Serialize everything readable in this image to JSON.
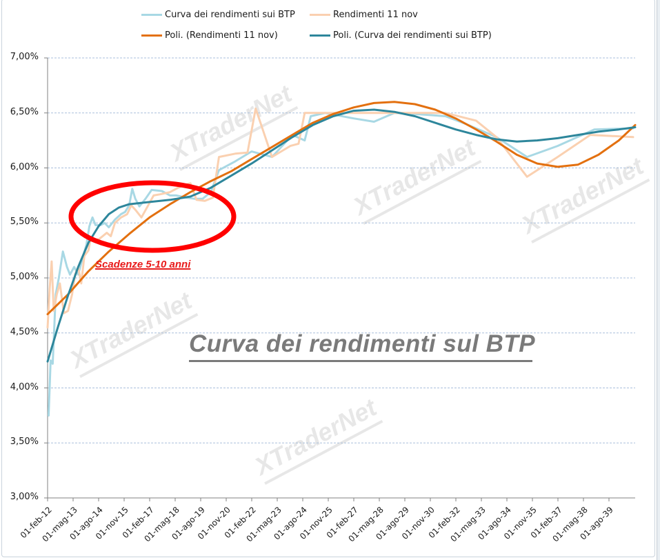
{
  "chart_data": {
    "type": "line",
    "title": "Curva dei rendimenti sul BTP",
    "xlabel": "",
    "ylabel": "",
    "ylim": [
      3.0,
      7.0
    ],
    "y_ticks": [
      "3,00%",
      "3,50%",
      "4,00%",
      "4,50%",
      "5,00%",
      "5,50%",
      "6,00%",
      "6,50%",
      "7,00%"
    ],
    "y_tick_values": [
      3.0,
      3.5,
      4.0,
      4.5,
      5.0,
      5.5,
      6.0,
      6.5,
      7.0
    ],
    "x_ticks": [
      "01-feb-12",
      "01-mag-13",
      "01-ago-14",
      "01-nov-15",
      "01-feb-17",
      "01-mag-18",
      "01-ago-19",
      "01-nov-20",
      "01-feb-22",
      "01-mag-23",
      "01-ago-24",
      "01-nov-25",
      "01-feb-27",
      "01-mag-28",
      "01-ago-29",
      "01-nov-30",
      "01-feb-32",
      "01-mag-33",
      "01-ago-34",
      "01-nov-35",
      "01-feb-37",
      "01-mag-38",
      "01-ago-39"
    ],
    "x_unit": "years since 01-feb-12",
    "x_range": [
      0,
      28.8
    ],
    "grid": "horizontal dashed",
    "legend_position": "top",
    "series": [
      {
        "name": "Curva dei rendimenti sui BTP",
        "color": "#a8d8e4",
        "width": 3,
        "points": [
          [
            0.05,
            3.75
          ],
          [
            0.15,
            4.25
          ],
          [
            0.25,
            4.22
          ],
          [
            0.4,
            4.85
          ],
          [
            0.55,
            5.0
          ],
          [
            0.75,
            5.24
          ],
          [
            0.95,
            5.1
          ],
          [
            1.1,
            5.03
          ],
          [
            1.3,
            5.1
          ],
          [
            1.5,
            5.03
          ],
          [
            1.7,
            5.17
          ],
          [
            1.9,
            5.3
          ],
          [
            2.05,
            5.47
          ],
          [
            2.2,
            5.55
          ],
          [
            2.35,
            5.48
          ],
          [
            2.6,
            5.48
          ],
          [
            2.8,
            5.5
          ],
          [
            3.0,
            5.46
          ],
          [
            3.3,
            5.53
          ],
          [
            3.6,
            5.58
          ],
          [
            3.8,
            5.6
          ],
          [
            4.0,
            5.66
          ],
          [
            4.15,
            5.81
          ],
          [
            4.3,
            5.72
          ],
          [
            4.5,
            5.65
          ],
          [
            4.8,
            5.72
          ],
          [
            5.1,
            5.8
          ],
          [
            5.6,
            5.79
          ],
          [
            6.0,
            5.75
          ],
          [
            6.3,
            5.75
          ],
          [
            6.8,
            5.73
          ],
          [
            7.2,
            5.72
          ],
          [
            7.6,
            5.72
          ],
          [
            8.0,
            5.78
          ],
          [
            8.4,
            5.98
          ],
          [
            9.2,
            6.06
          ],
          [
            10.0,
            6.15
          ],
          [
            11.0,
            6.1
          ],
          [
            12.0,
            6.3
          ],
          [
            12.6,
            6.25
          ],
          [
            12.9,
            6.47
          ],
          [
            13.6,
            6.5
          ],
          [
            15.0,
            6.45
          ],
          [
            16.0,
            6.42
          ],
          [
            17.0,
            6.5
          ],
          [
            18.0,
            6.49
          ],
          [
            19.5,
            6.47
          ],
          [
            20.5,
            6.4
          ],
          [
            22.0,
            6.28
          ],
          [
            23.5,
            6.1
          ],
          [
            25.0,
            6.2
          ],
          [
            26.8,
            6.35
          ],
          [
            28.7,
            6.36
          ]
        ]
      },
      {
        "name": "Rendimenti 11 nov",
        "color": "#fad0b0",
        "width": 3,
        "points": [
          [
            0.0,
            4.55
          ],
          [
            0.1,
            4.9
          ],
          [
            0.2,
            5.15
          ],
          [
            0.3,
            4.7
          ],
          [
            0.45,
            4.85
          ],
          [
            0.6,
            4.95
          ],
          [
            0.8,
            4.68
          ],
          [
            1.0,
            4.7
          ],
          [
            1.2,
            4.85
          ],
          [
            1.35,
            5.03
          ],
          [
            1.5,
            5.1
          ],
          [
            1.65,
            4.95
          ],
          [
            1.8,
            5.2
          ],
          [
            2.0,
            5.25
          ],
          [
            2.1,
            5.35
          ],
          [
            2.3,
            5.35
          ],
          [
            2.5,
            5.35
          ],
          [
            2.7,
            5.38
          ],
          [
            2.9,
            5.41
          ],
          [
            3.1,
            5.38
          ],
          [
            3.3,
            5.5
          ],
          [
            3.6,
            5.55
          ],
          [
            3.9,
            5.58
          ],
          [
            4.1,
            5.66
          ],
          [
            4.3,
            5.62
          ],
          [
            4.6,
            5.55
          ],
          [
            4.9,
            5.65
          ],
          [
            5.2,
            5.75
          ],
          [
            5.5,
            5.76
          ],
          [
            6.0,
            5.78
          ],
          [
            6.4,
            5.82
          ],
          [
            6.8,
            5.85
          ],
          [
            7.0,
            5.86
          ],
          [
            7.3,
            5.71
          ],
          [
            7.7,
            5.7
          ],
          [
            8.1,
            5.73
          ],
          [
            8.4,
            6.1
          ],
          [
            9.2,
            6.13
          ],
          [
            9.8,
            6.14
          ],
          [
            10.2,
            6.54
          ],
          [
            11.0,
            6.1
          ],
          [
            11.9,
            6.2
          ],
          [
            12.3,
            6.22
          ],
          [
            12.6,
            6.5
          ],
          [
            13.5,
            6.5
          ],
          [
            15.0,
            6.5
          ],
          [
            16.5,
            6.5
          ],
          [
            18.0,
            6.5
          ],
          [
            19.5,
            6.5
          ],
          [
            21.0,
            6.43
          ],
          [
            22.0,
            6.28
          ],
          [
            23.5,
            5.92
          ],
          [
            25.0,
            6.1
          ],
          [
            26.6,
            6.3
          ],
          [
            28.7,
            6.28
          ]
        ]
      },
      {
        "name": "Poli. (Rendimenti 11 nov)",
        "color": "#e3700f",
        "width": 3,
        "trendline": "polynomial",
        "points": [
          [
            0.0,
            4.67
          ],
          [
            1.0,
            4.85
          ],
          [
            2.0,
            5.06
          ],
          [
            3.0,
            5.24
          ],
          [
            4.0,
            5.4
          ],
          [
            5.0,
            5.55
          ],
          [
            6.0,
            5.67
          ],
          [
            7.0,
            5.78
          ],
          [
            8.0,
            5.88
          ],
          [
            9.0,
            5.97
          ],
          [
            10.0,
            6.08
          ],
          [
            11.0,
            6.19
          ],
          [
            12.0,
            6.3
          ],
          [
            13.0,
            6.41
          ],
          [
            14.0,
            6.49
          ],
          [
            15.0,
            6.55
          ],
          [
            16.0,
            6.59
          ],
          [
            17.0,
            6.6
          ],
          [
            18.0,
            6.58
          ],
          [
            19.0,
            6.53
          ],
          [
            20.0,
            6.45
          ],
          [
            21.0,
            6.35
          ],
          [
            22.0,
            6.24
          ],
          [
            23.0,
            6.12
          ],
          [
            24.0,
            6.04
          ],
          [
            25.0,
            6.01
          ],
          [
            26.0,
            6.03
          ],
          [
            27.0,
            6.12
          ],
          [
            28.0,
            6.25
          ],
          [
            28.8,
            6.39
          ]
        ]
      },
      {
        "name": "Poli. (Curva dei rendimenti sui BTP)",
        "color": "#2d869b",
        "width": 3,
        "trendline": "polynomial",
        "points": [
          [
            0.0,
            4.24
          ],
          [
            0.5,
            4.55
          ],
          [
            1.0,
            4.84
          ],
          [
            1.5,
            5.1
          ],
          [
            2.0,
            5.32
          ],
          [
            2.5,
            5.47
          ],
          [
            3.0,
            5.58
          ],
          [
            3.5,
            5.64
          ],
          [
            4.0,
            5.67
          ],
          [
            5.0,
            5.69
          ],
          [
            6.0,
            5.71
          ],
          [
            7.0,
            5.74
          ],
          [
            8.0,
            5.82
          ],
          [
            9.0,
            5.93
          ],
          [
            10.0,
            6.04
          ],
          [
            11.0,
            6.16
          ],
          [
            12.0,
            6.28
          ],
          [
            13.0,
            6.39
          ],
          [
            14.0,
            6.47
          ],
          [
            15.0,
            6.52
          ],
          [
            16.0,
            6.53
          ],
          [
            17.0,
            6.51
          ],
          [
            18.0,
            6.47
          ],
          [
            19.0,
            6.41
          ],
          [
            20.0,
            6.35
          ],
          [
            21.0,
            6.3
          ],
          [
            22.0,
            6.26
          ],
          [
            23.0,
            6.24
          ],
          [
            24.0,
            6.25
          ],
          [
            25.0,
            6.27
          ],
          [
            26.0,
            6.3
          ],
          [
            27.0,
            6.33
          ],
          [
            28.0,
            6.35
          ],
          [
            28.8,
            6.37
          ]
        ]
      }
    ],
    "annotations": [
      {
        "type": "ellipse",
        "color": "#ff0000",
        "label": "Scadenze 5-10 anni"
      },
      {
        "type": "text",
        "text": "Curva dei rendimenti sul BTP"
      }
    ]
  },
  "legend": {
    "items": [
      {
        "label": "Curva dei rendimenti sui BTP",
        "color": "#a8d8e4"
      },
      {
        "label": "Rendimenti 11 nov",
        "color": "#fad0b0"
      },
      {
        "label": "Poli. (Rendimenti 11 nov)",
        "color": "#e3700f"
      },
      {
        "label": "Poli. (Curva dei rendimenti sui BTP)",
        "color": "#2d869b"
      }
    ]
  },
  "annotation": {
    "ellipse_label": "Scadenze 5-10 anni",
    "title_overlay": "Curva dei rendimenti sul BTP"
  },
  "watermark": {
    "text": "XTraderNet"
  }
}
